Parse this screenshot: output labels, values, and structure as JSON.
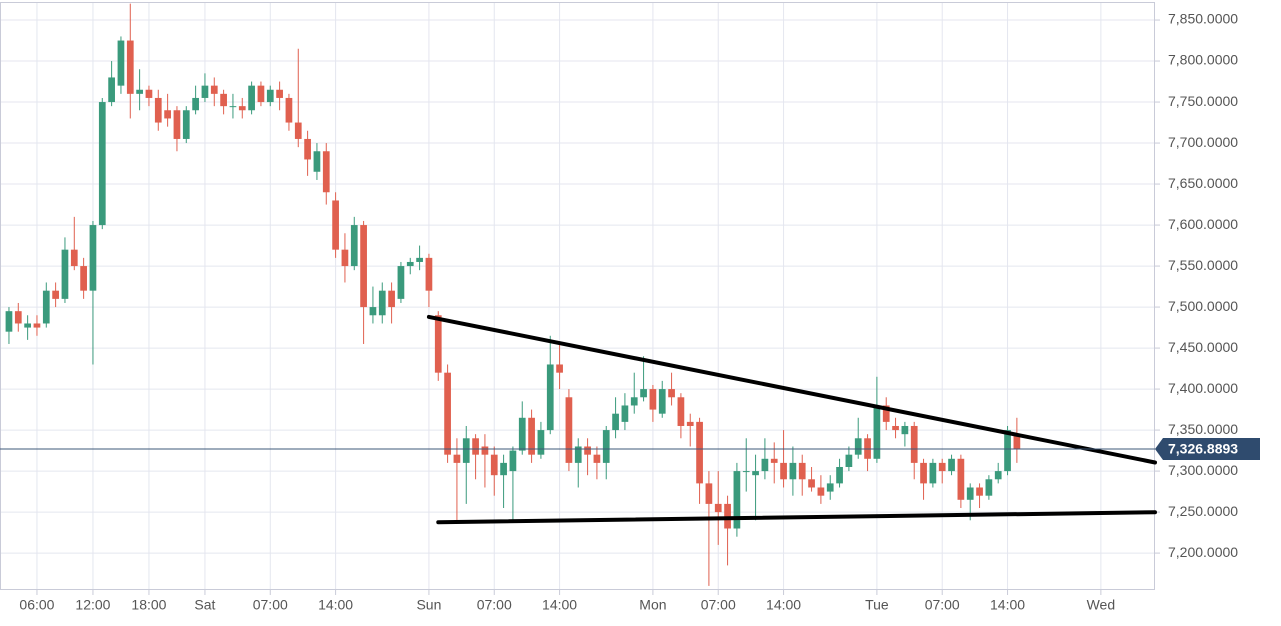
{
  "chart_data": {
    "type": "candlestick",
    "up_color": "#3a9a7c",
    "down_color": "#e0604f",
    "grid": true,
    "x": [
      3,
      4,
      5,
      6,
      7,
      8,
      9,
      10,
      11,
      12,
      13,
      14,
      15,
      16,
      17,
      18,
      19,
      20,
      21,
      22,
      23,
      24,
      25,
      26,
      27,
      28,
      29,
      30,
      31,
      32,
      33,
      34,
      35,
      36,
      37,
      38,
      39,
      40,
      41,
      42,
      43,
      44,
      45,
      46,
      47,
      48,
      49,
      50,
      51,
      52,
      53,
      54,
      55,
      56,
      57,
      58,
      59,
      60,
      61,
      62,
      63,
      64,
      65,
      66,
      67,
      68,
      69,
      70,
      71,
      72,
      73,
      74,
      75,
      76,
      77,
      78,
      79,
      80,
      81,
      82,
      83,
      84,
      85,
      86,
      87,
      88,
      89,
      90,
      91,
      92,
      93,
      94,
      95,
      96,
      97,
      98,
      99,
      100,
      101,
      102,
      103,
      104,
      105,
      106,
      107,
      108,
      109,
      110,
      111
    ],
    "open": [
      7470,
      7495,
      7475,
      7480,
      7480,
      7520,
      7510,
      7570,
      7550,
      7520,
      7600,
      7750,
      7770,
      7825,
      7760,
      7765,
      7755,
      7740,
      7740,
      7705,
      7740,
      7755,
      7770,
      7760,
      7745,
      7745,
      7740,
      7770,
      7750,
      7765,
      7755,
      7725,
      7705,
      7665,
      7690,
      7630,
      7570,
      7550,
      7600,
      7490,
      7490,
      7520,
      7510,
      7550,
      7555,
      7560,
      7490,
      7420,
      7320,
      7310,
      7340,
      7330,
      7320,
      7295,
      7300,
      7325,
      7365,
      7320,
      7350,
      7430,
      7390,
      7310,
      7330,
      7320,
      7310,
      7350,
      7360,
      7380,
      7390,
      7400,
      7370,
      7400,
      7390,
      7360,
      7360,
      7285,
      7260,
      7260,
      7230,
      7300,
      7295,
      7300,
      7315,
      7310,
      7290,
      7310,
      7290,
      7280,
      7275,
      7285,
      7305,
      7320,
      7340,
      7315,
      7380,
      7355,
      7345,
      7355,
      7310,
      7285,
      7310,
      7300,
      7315,
      7265,
      7280,
      7270,
      7290,
      7300,
      7345
    ],
    "high": [
      7500,
      7505,
      7490,
      7490,
      7530,
      7530,
      7585,
      7610,
      7560,
      7605,
      7755,
      7800,
      7830,
      7870,
      7790,
      7770,
      7765,
      7760,
      7745,
      7745,
      7770,
      7785,
      7780,
      7765,
      7760,
      7755,
      7775,
      7775,
      7770,
      7775,
      7760,
      7815,
      7715,
      7700,
      7700,
      7640,
      7590,
      7610,
      7605,
      7525,
      7530,
      7530,
      7555,
      7560,
      7575,
      7565,
      7495,
      7430,
      7340,
      7355,
      7345,
      7345,
      7330,
      7320,
      7330,
      7385,
      7375,
      7360,
      7465,
      7455,
      7400,
      7340,
      7340,
      7330,
      7355,
      7390,
      7395,
      7420,
      7440,
      7405,
      7410,
      7420,
      7395,
      7370,
      7365,
      7300,
      7300,
      7270,
      7310,
      7340,
      7320,
      7340,
      7335,
      7350,
      7330,
      7320,
      7305,
      7295,
      7295,
      7315,
      7330,
      7365,
      7345,
      7415,
      7390,
      7365,
      7360,
      7360,
      7315,
      7315,
      7315,
      7320,
      7320,
      7285,
      7285,
      7295,
      7310,
      7355,
      7365
    ],
    "low": [
      7455,
      7470,
      7460,
      7465,
      7475,
      7500,
      7505,
      7545,
      7510,
      7430,
      7595,
      7745,
      7760,
      7730,
      7740,
      7745,
      7715,
      7720,
      7690,
      7700,
      7735,
      7750,
      7745,
      7735,
      7730,
      7730,
      7735,
      7745,
      7745,
      7740,
      7715,
      7695,
      7660,
      7655,
      7625,
      7560,
      7530,
      7545,
      7455,
      7480,
      7480,
      7480,
      7505,
      7540,
      7545,
      7500,
      7410,
      7310,
      7240,
      7260,
      7290,
      7280,
      7270,
      7255,
      7240,
      7320,
      7310,
      7315,
      7345,
      7400,
      7300,
      7280,
      7295,
      7290,
      7290,
      7340,
      7350,
      7370,
      7385,
      7360,
      7365,
      7380,
      7340,
      7330,
      7260,
      7160,
      7210,
      7185,
      7220,
      7275,
      7240,
      7290,
      7285,
      7280,
      7270,
      7270,
      7275,
      7260,
      7265,
      7280,
      7300,
      7315,
      7300,
      7310,
      7350,
      7340,
      7330,
      7290,
      7265,
      7280,
      7285,
      7295,
      7255,
      7240,
      7255,
      7265,
      7285,
      7295,
      7310
    ],
    "close": [
      7495,
      7480,
      7480,
      7475,
      7520,
      7510,
      7570,
      7550,
      7520,
      7600,
      7750,
      7780,
      7825,
      7760,
      7765,
      7755,
      7725,
      7730,
      7705,
      7740,
      7755,
      7770,
      7760,
      7745,
      7745,
      7740,
      7770,
      7750,
      7765,
      7755,
      7725,
      7705,
      7680,
      7690,
      7640,
      7570,
      7550,
      7600,
      7500,
      7500,
      7520,
      7500,
      7550,
      7555,
      7560,
      7520,
      7420,
      7320,
      7310,
      7340,
      7320,
      7320,
      7295,
      7310,
      7325,
      7365,
      7320,
      7350,
      7430,
      7420,
      7310,
      7330,
      7320,
      7310,
      7350,
      7370,
      7380,
      7390,
      7400,
      7375,
      7400,
      7390,
      7355,
      7355,
      7285,
      7260,
      7250,
      7230,
      7300,
      7300,
      7300,
      7315,
      7310,
      7290,
      7310,
      7290,
      7280,
      7270,
      7285,
      7305,
      7320,
      7340,
      7315,
      7380,
      7360,
      7350,
      7355,
      7310,
      7285,
      7310,
      7300,
      7315,
      7265,
      7280,
      7270,
      7290,
      7300,
      7350,
      7326.8893
    ],
    "last_price": {
      "value": 7326.8893,
      "label": "7,326.8893"
    },
    "trendlines": [
      {
        "x": [
          48,
          125.8
        ],
        "y": [
          7488,
          7310.5
        ]
      },
      {
        "x": [
          49,
          125.8
        ],
        "y": [
          7237.6,
          7249.8
        ]
      }
    ],
    "xlim": [
      2.04,
      125.8
    ],
    "xticks": [
      {
        "value": 6,
        "label": "06:00"
      },
      {
        "value": 12,
        "label": "12:00"
      },
      {
        "value": 18,
        "label": "18:00"
      },
      {
        "value": 24,
        "label": "Sat"
      },
      {
        "value": 31,
        "label": "07:00"
      },
      {
        "value": 38,
        "label": "14:00"
      },
      {
        "value": 48,
        "label": "Sun"
      },
      {
        "value": 55,
        "label": "07:00"
      },
      {
        "value": 62,
        "label": "14:00"
      },
      {
        "value": 72,
        "label": "Mon"
      },
      {
        "value": 79,
        "label": "07:00"
      },
      {
        "value": 86,
        "label": "14:00"
      },
      {
        "value": 96,
        "label": "Tue"
      },
      {
        "value": 103,
        "label": "07:00"
      },
      {
        "value": 110,
        "label": "14:00"
      },
      {
        "value": 120,
        "label": "Wed"
      }
    ],
    "ylim": [
      7155,
      7872
    ],
    "yticks": [
      {
        "value": 7200,
        "label": "7,200.0000"
      },
      {
        "value": 7250,
        "label": "7,250.0000"
      },
      {
        "value": 7300,
        "label": "7,300.0000"
      },
      {
        "value": 7350,
        "label": "7,350.0000"
      },
      {
        "value": 7400,
        "label": "7,400.0000"
      },
      {
        "value": 7450,
        "label": "7,450.0000"
      },
      {
        "value": 7500,
        "label": "7,500.0000"
      },
      {
        "value": 7550,
        "label": "7,550.0000"
      },
      {
        "value": 7600,
        "label": "7,600.0000"
      },
      {
        "value": 7650,
        "label": "7,650.0000"
      },
      {
        "value": 7700,
        "label": "7,700.0000"
      },
      {
        "value": 7750,
        "label": "7,750.0000"
      },
      {
        "value": 7800,
        "label": "7,800.0000"
      },
      {
        "value": 7850,
        "label": "7,850.0000"
      }
    ]
  }
}
